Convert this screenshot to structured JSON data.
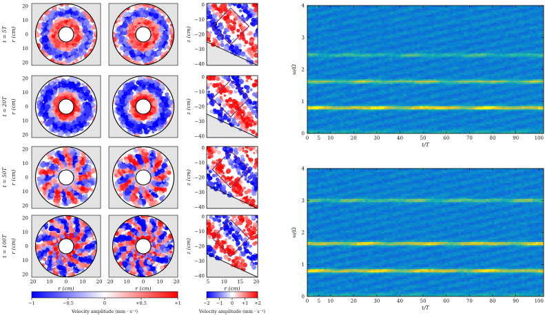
{
  "left_panels": {
    "row_labels": [
      "t = 5T",
      "t = 20T",
      "t = 50T",
      "t = 100T"
    ],
    "ylabel_disc": "r (cm)",
    "ylabel_section": "z (cm)",
    "xlabel_disc": "r (cm)",
    "xlabel_section": "r (cm)",
    "disc_y_ticks": [
      "20",
      "10",
      "0",
      "10",
      "20"
    ],
    "disc_x_ticks": [
      "20",
      "10",
      "0",
      "10",
      "20"
    ],
    "section_y_ticks": [
      "0",
      "−10",
      "−20",
      "−30",
      "−40"
    ],
    "section_x_ticks": [
      "5",
      "10",
      "15",
      "20"
    ]
  },
  "colorbars": {
    "velocity": {
      "label": "Velocity amplitude (mm · s⁻¹)",
      "ticks": [
        "−1",
        "−0.5",
        "0",
        "+0.5",
        "+1"
      ],
      "range": [
        -1,
        1
      ],
      "colors": {
        "neg": "#0000ff",
        "mid": "#ffffff",
        "pos": "#ff0000"
      }
    },
    "section": {
      "label": "Velocity amplitude (mm · s⁻¹)",
      "ticks": [
        "−2",
        "−1",
        "0",
        "+1",
        "+2"
      ],
      "range": [
        -2,
        2
      ]
    }
  },
  "chart_data": [
    {
      "type": "heatmap",
      "title": "",
      "xlabel": "t/T",
      "ylabel": "ω/Ω",
      "xlim": [
        0,
        102
      ],
      "ylim": [
        0,
        4
      ],
      "x_ticks": [
        0,
        5,
        10,
        20,
        30,
        40,
        50,
        60,
        70,
        80,
        90,
        100
      ],
      "y_ticks": [
        0,
        1,
        2,
        3,
        4
      ],
      "bands": [
        {
          "freq": 0.8,
          "strength": 1.0
        },
        {
          "freq": 1.62,
          "strength": 0.7
        },
        {
          "freq": 2.45,
          "strength": 0.45
        }
      ]
    },
    {
      "type": "heatmap",
      "title": "",
      "xlabel": "t/T",
      "ylabel": "ω/Ω",
      "xlim": [
        0,
        102
      ],
      "ylim": [
        0,
        4
      ],
      "x_ticks": [
        0,
        5,
        10,
        20,
        30,
        40,
        50,
        60,
        70,
        80,
        90,
        100
      ],
      "y_ticks": [
        0,
        1,
        2,
        3,
        4
      ],
      "bands": [
        {
          "freq": 0.8,
          "strength": 0.95
        },
        {
          "freq": 1.65,
          "strength": 0.9
        },
        {
          "freq": 3.0,
          "strength": 0.6
        }
      ]
    }
  ]
}
